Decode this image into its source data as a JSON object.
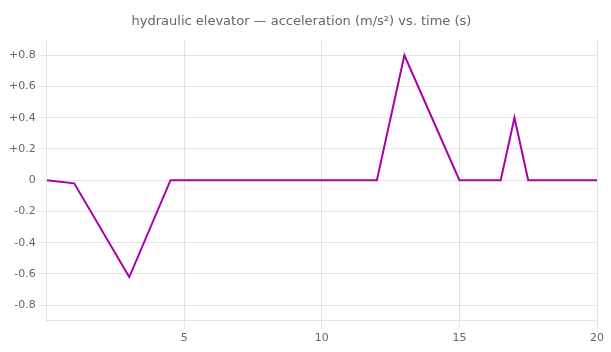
{
  "chart_data": {
    "type": "line",
    "title": "hydraulic elevator — acceleration (m/s²) vs. time (s)",
    "x": [
      0,
      1.0,
      3.0,
      4.5,
      12.0,
      13.0,
      15.0,
      16.5,
      17.0,
      17.5,
      18.0,
      20.0
    ],
    "values": [
      0,
      -0.02,
      -0.62,
      0.0,
      0.0,
      0.8,
      0.0,
      0.0,
      0.4,
      0.0,
      0.0,
      0.0
    ],
    "color": "#aa00aa",
    "xlim": [
      0,
      20
    ],
    "xticks": [
      5,
      10,
      15,
      20
    ],
    "ylim": [
      -0.9,
      0.9
    ],
    "yticks": [
      -0.8,
      -0.6,
      -0.4,
      -0.2,
      0,
      {
        "value": 0.2,
        "label": "+0.2"
      },
      {
        "value": 0.4,
        "label": "+0.4"
      },
      {
        "value": 0.6,
        "label": "+0.6"
      },
      {
        "value": 0.8,
        "label": "+0.8"
      }
    ],
    "grid": true
  }
}
